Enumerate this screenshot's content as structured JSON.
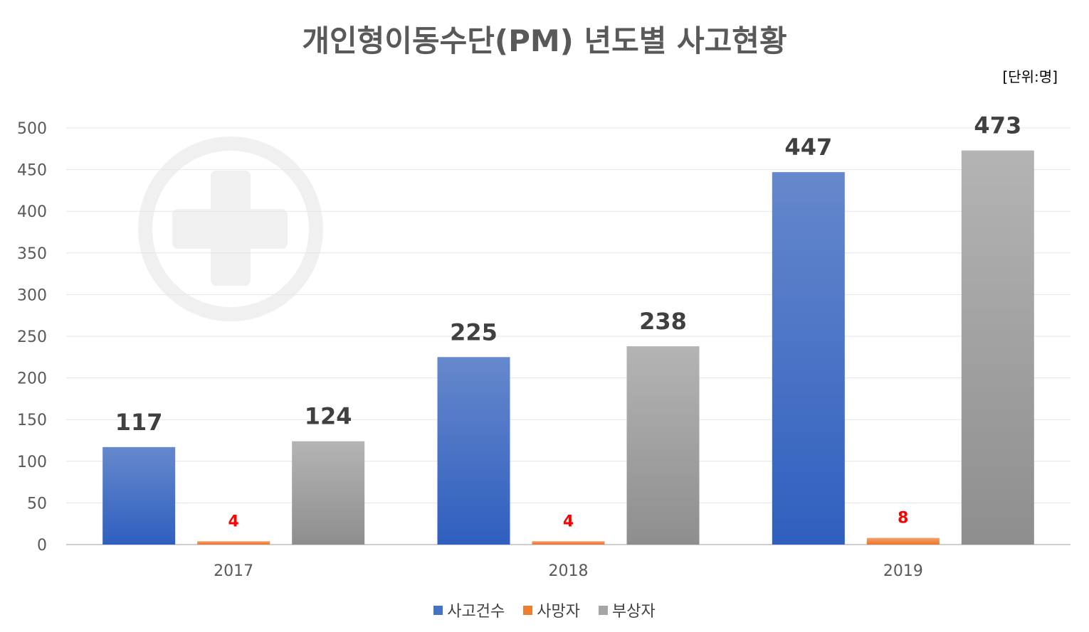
{
  "chart_data": {
    "type": "bar",
    "title": "개인형이동수단(PM) 년도별 사고현황",
    "unit_note": "[단위:명]",
    "categories": [
      "2017",
      "2018",
      "2019"
    ],
    "series": [
      {
        "name": "사고건수",
        "values": [
          117,
          225,
          447
        ],
        "color": "#4472C4"
      },
      {
        "name": "사망자",
        "values": [
          4,
          4,
          8
        ],
        "color": "#ED7D31"
      },
      {
        "name": "부상자",
        "values": [
          124,
          238,
          473
        ],
        "color": "#A5A5A5"
      }
    ],
    "ylim": [
      0,
      500
    ],
    "yticks": [
      "0",
      "50",
      "100",
      "150",
      "200",
      "250",
      "300",
      "350",
      "400",
      "450",
      "500"
    ],
    "grid": true,
    "legend_position": "bottom",
    "data_label_colors": {
      "default": "#404040",
      "highlight": "#FF0000"
    },
    "watermark_icon": "medical-cross-icon"
  }
}
